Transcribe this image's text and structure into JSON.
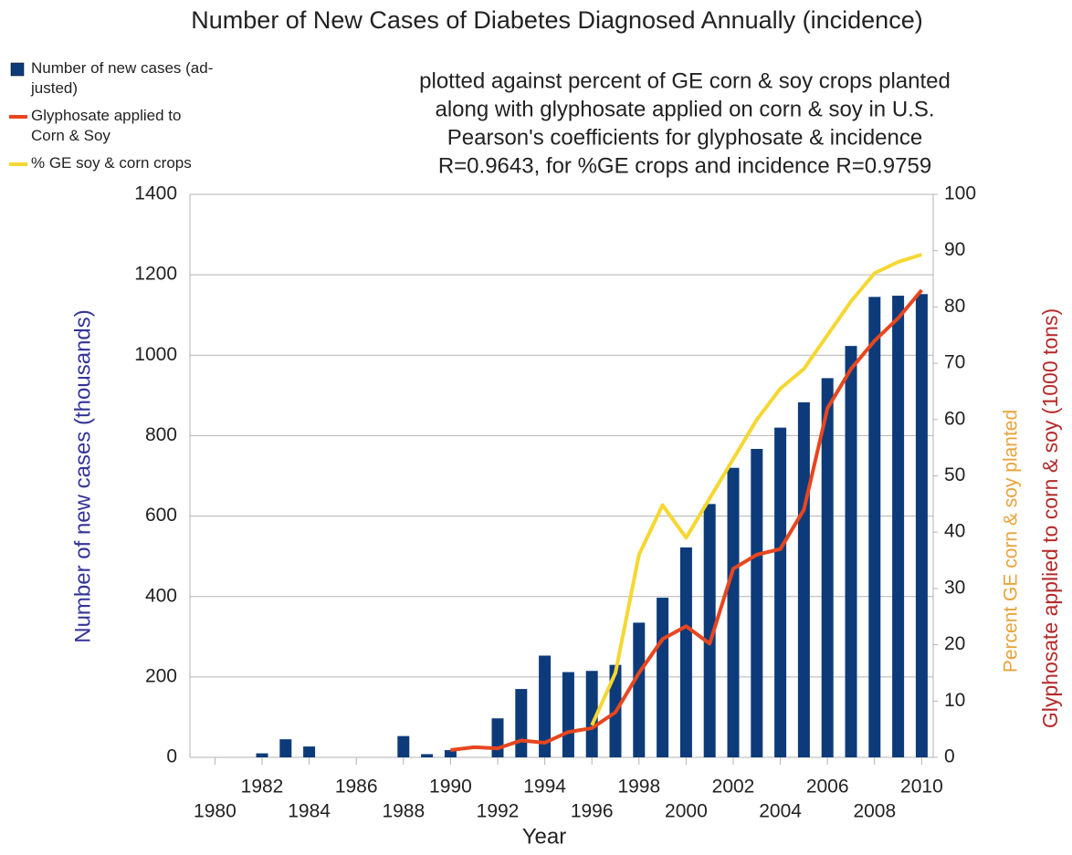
{
  "chart_data": {
    "type": "bar",
    "title": "Number of New Cases of Diabetes Diagnosed Annually (incidence)",
    "subtitle": [
      "plotted against percent of GE corn & soy crops planted",
      "along with glyphosate applied on corn & soy in U.S.",
      "Pearson's coefficients for glyphosate & incidence",
      "R=0.9643, for %GE crops and incidence R=0.9759"
    ],
    "x_label": "Year",
    "y_label": "Number of new cases (thousands)",
    "y2_labels": [
      "Percent GE corn & soy planted",
      "Glyphosate applied to corn & soy (1000 tons)"
    ],
    "categories": [
      "1980",
      null,
      "1982",
      null,
      "1984",
      null,
      "1986",
      null,
      "1988",
      null,
      "1990",
      null,
      "1992",
      null,
      "1994",
      null,
      "1996",
      null,
      "1998",
      null,
      "2000",
      null,
      "2002",
      null,
      "2004",
      null,
      "2006",
      null,
      "2008",
      null,
      "2010"
    ],
    "series": [
      {
        "name": "Number of new cases (ad-\njusted)",
        "type": "bar",
        "color": "#0d3b7a",
        "values": [
          null,
          null,
          10,
          45,
          27,
          null,
          null,
          null,
          53,
          8,
          18,
          null,
          97,
          170,
          253,
          212,
          215,
          230,
          335,
          397,
          522,
          630,
          720,
          767,
          820,
          883,
          943,
          1023,
          1145,
          1148,
          1152
        ]
      },
      {
        "name": "Glyphosate applied to\nCorn & Soy",
        "type": "line",
        "axis": "y2",
        "color": "#e8461e",
        "values": [
          null,
          null,
          null,
          null,
          null,
          null,
          null,
          null,
          null,
          null,
          1.3,
          1.8,
          1.6,
          3,
          2.6,
          4.5,
          5.2,
          8,
          15,
          21,
          23.3,
          20.2,
          33.5,
          36,
          37,
          44,
          62,
          69,
          74,
          78,
          83
        ]
      },
      {
        "name": "% GE soy & corn crops",
        "type": "line",
        "axis": "y2",
        "color": "#f5d731",
        "values": [
          null,
          null,
          null,
          null,
          null,
          null,
          null,
          null,
          null,
          null,
          null,
          null,
          null,
          null,
          null,
          null,
          5.7,
          15,
          36,
          44.8,
          39,
          46,
          53,
          60,
          65.5,
          69,
          75,
          81,
          86,
          88,
          89.3
        ]
      }
    ],
    "ylim": [
      0,
      1400
    ],
    "yticks": [
      0,
      200,
      400,
      600,
      800,
      1000,
      1200,
      1400
    ],
    "y2lim": [
      0,
      100
    ],
    "y2ticks": [
      0,
      10,
      20,
      30,
      40,
      50,
      60,
      70,
      80,
      90,
      100
    ],
    "grid": true
  }
}
